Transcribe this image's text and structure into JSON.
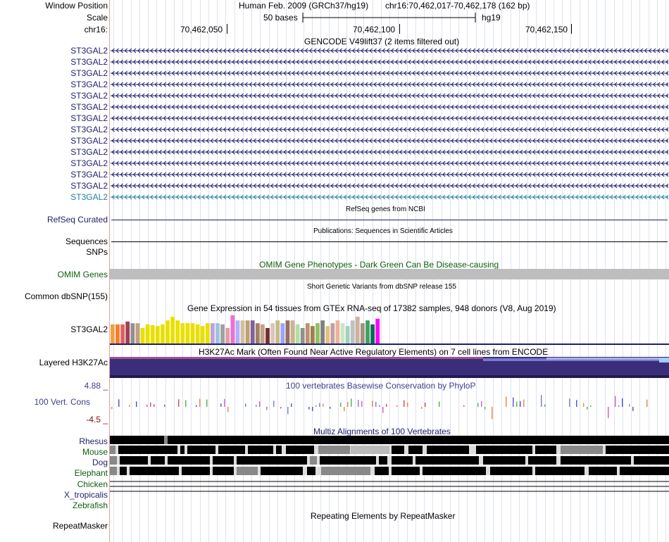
{
  "header": {
    "window_position_label": "Window Position",
    "assembly": "Human Feb. 2009 (GRCh37/hg19)",
    "position": "chr16:70,462,017-70,462,178 (162 bp)",
    "scale_label": "Scale",
    "scale_bar_text": "50 bases",
    "db": "hg19",
    "chrom_label": "chr16:",
    "ticks": [
      "70,462,050",
      "70,462,100",
      "70,462,150"
    ]
  },
  "gencode": {
    "title": "GENCODE V49lift37 (2 items filtered out)",
    "genes": [
      "ST3GAL2",
      "ST3GAL2",
      "ST3GAL2",
      "ST3GAL2",
      "ST3GAL2",
      "ST3GAL2",
      "ST3GAL2",
      "ST3GAL2",
      "ST3GAL2",
      "ST3GAL2",
      "ST3GAL2",
      "ST3GAL2",
      "ST3GAL2",
      "ST3GAL2"
    ],
    "strand_glyph": "‹",
    "color_main": "#1e1e6e",
    "color_last": "#1f7fa8"
  },
  "refseq": {
    "title": "RefSeq genes from NCBI",
    "label": "RefSeq Curated"
  },
  "publications": {
    "title": "Publications: Sequences in Scientific Articles",
    "label1": "Sequences",
    "label2": "SNPs"
  },
  "omim": {
    "title": "OMIM Gene Phenotypes - Dark Green Can Be Disease-causing",
    "label": "OMIM Genes"
  },
  "dbsnp": {
    "title": "Short Genetic Variants from dbSNP release 155",
    "label": "Common dbSNP(155)"
  },
  "gtex": {
    "title": "Gene Expression in 54 tissues from GTEx RNA-seq of 17382 samples, 948 donors (V8, Aug 2019)",
    "label": "ST3GAL2",
    "levels": [
      0.68,
      0.68,
      0.68,
      0.78,
      0.72,
      0.72,
      0.55,
      0.68,
      0.65,
      0.62,
      0.68,
      0.82,
      0.95,
      0.82,
      0.72,
      0.72,
      0.72,
      0.68,
      0.62,
      0.72,
      0.72,
      0.72,
      0.68,
      0.55,
      1.0,
      0.82,
      0.82,
      0.82,
      0.82,
      0.72,
      0.68,
      0.55,
      0.72,
      0.82,
      0.72,
      0.82,
      0.82,
      0.68,
      0.55,
      0.72,
      0.62,
      0.72,
      0.82,
      0.62,
      0.72,
      0.82,
      0.72,
      0.62,
      0.82,
      0.95,
      0.72,
      0.82,
      0.68,
      0.88
    ],
    "colors": [
      "#f0a040",
      "#f08030",
      "#e06060",
      "#a04050",
      "#909090",
      "#c0a080",
      "#e8e000",
      "#e8e000",
      "#e8e000",
      "#e8e000",
      "#e8e000",
      "#e8e000",
      "#e8e000",
      "#e8e000",
      "#e8e000",
      "#e8e000",
      "#e8e000",
      "#e8e000",
      "#e8e000",
      "#e8e000",
      "#c0a0e0",
      "#a0c0e0",
      "#a0a0a0",
      "#e0a0a0",
      "#f070d0",
      "#b0b0ff",
      "#d0c0a0",
      "#c0a070",
      "#8060a0",
      "#a08060",
      "#c8a080",
      "#703030",
      "#e0c0c0",
      "#c0c080",
      "#a0a0ff",
      "#907060",
      "#d0b090",
      "#b0e0a0",
      "#909090",
      "#c09070",
      "#a08050",
      "#90c060",
      "#808080",
      "#e0c080",
      "#c0a0a0",
      "#f0b0a0",
      "#c8e8c0",
      "#a0d0c0",
      "#c0c0c0",
      "#d0b0a0",
      "#a09080",
      "#40a060",
      "#007050",
      "#ff00ff"
    ]
  },
  "h3k27ac": {
    "title": "H3K27Ac Mark (Often Found Near Active Regulatory Elements) on 7 cell lines from ENCODE",
    "label": "Layered H3K27Ac",
    "color": "#3a2e7a"
  },
  "phylop": {
    "title": "100 vertebrates Basewise Conservation by PhyloP",
    "label": "100 Vert. Cons",
    "max_label": "4.88 _",
    "min_label": "-4.5 _",
    "ylim": [
      -4.5,
      4.88
    ]
  },
  "multiz": {
    "title": "Multiz Alignments of 100 Vertebrates",
    "species": [
      {
        "name": "Rhesus",
        "color": "#1e1e6e"
      },
      {
        "name": "Mouse",
        "color": "#0b5e0b"
      },
      {
        "name": "Dog",
        "color": "#1e1e6e"
      },
      {
        "name": "Elephant",
        "color": "#0b5e0b"
      },
      {
        "name": "Chicken",
        "color": "#0b5e0b"
      },
      {
        "name": "X_tropicalis",
        "color": "#1e1e6e"
      },
      {
        "name": "Zebrafish",
        "color": "#0b5e0b"
      }
    ]
  },
  "repeatmasker": {
    "title": "Repeating Elements by RepeatMasker",
    "label": "RepeatMasker"
  }
}
